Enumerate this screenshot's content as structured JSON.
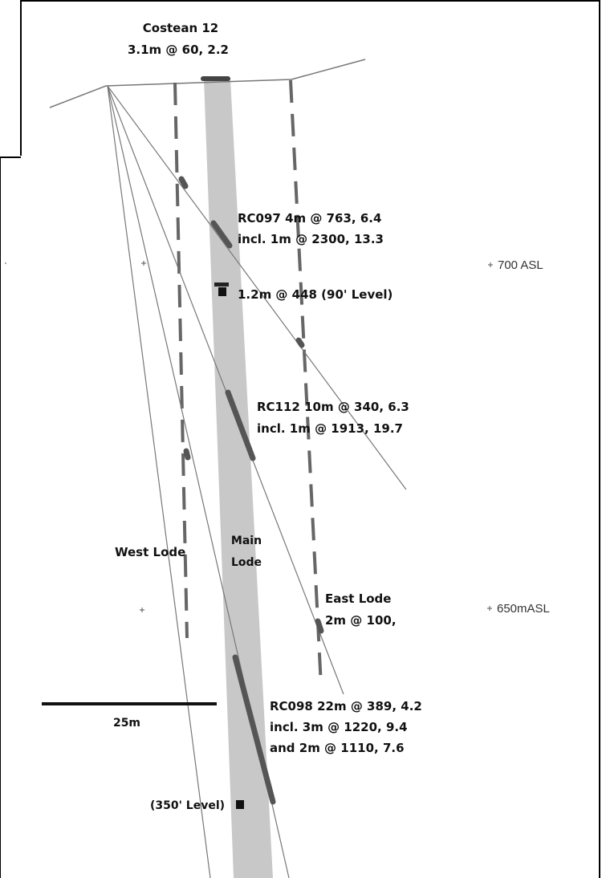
{
  "colors": {
    "lode_fill": "#c8c8c8",
    "intercept": "#555555",
    "hole_line": "#707070",
    "dashed_lode": "#666666",
    "text": "#111111",
    "frame": "#000000"
  },
  "labels": {
    "costean_title": "Costean 12",
    "costean_value": "3.1m @ 60, 2.2",
    "rc097_line1": "RC097 4m @ 763, 6.4",
    "rc097_line2": "incl. 1m @ 2300, 13.3",
    "level90": "1.2m @ 448  (90' Level)",
    "rc112_line1": "RC112 10m @ 340, 6.3",
    "rc112_line2": "incl. 1m @ 1913, 19.7",
    "west_lode": "West Lode",
    "main_lode_1": "Main",
    "main_lode_2": "Lode",
    "east_lode": "East Lode",
    "east_lode_value": "2m @ 100,",
    "rc098_line1": "RC098 22m @ 389, 4.2",
    "rc098_line2": "incl. 3m @ 1220, 9.4",
    "rc098_line3": "and 2m @ 1110, 7.6",
    "scale": "25m",
    "level350": "(350' Level)",
    "asl700": "700 ASL",
    "asl650": "650mASL"
  }
}
